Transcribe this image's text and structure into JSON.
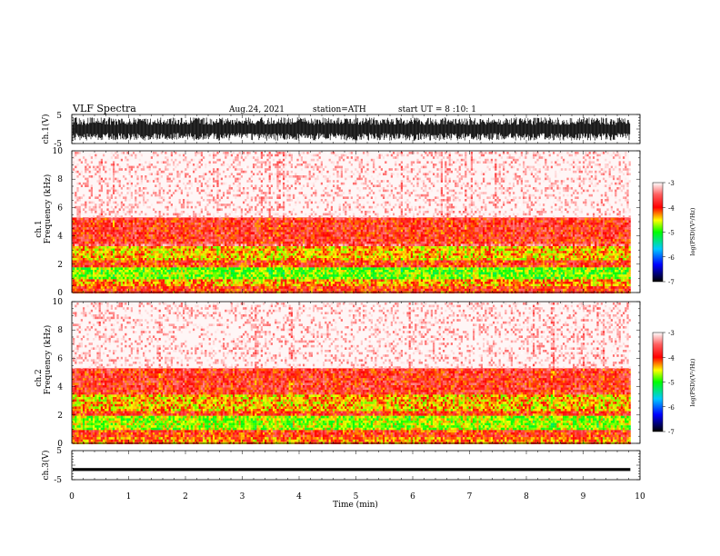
{
  "header": {
    "title": "VLF Spectra",
    "date": "Aug.24, 2021",
    "station": "station=ATH",
    "start": "start UT = 8 :10: 1"
  },
  "colors": {
    "background": "#ffffff",
    "axes": "#000000",
    "colormap": [
      "#000000",
      "#0000ff",
      "#00c8ff",
      "#00ff00",
      "#ffff00",
      "#ff0000",
      "#ffffff"
    ]
  },
  "chart_data": [
    {
      "type": "line",
      "ylabel": "ch.1(V)",
      "yticks": [
        "5",
        "-5"
      ],
      "ylim": [
        -5,
        5
      ],
      "xlim": [
        0,
        10
      ],
      "data_end_min": 9.83,
      "description_signal": "dense noise band",
      "amplitude": [
        -4,
        4
      ]
    },
    {
      "type": "heatmap",
      "ylabel_top": "ch.1",
      "ylabel": "Frequency (kHz)",
      "yticks": [
        "10",
        "8",
        "6",
        "4",
        "2",
        "0"
      ],
      "ylim": [
        0,
        10
      ],
      "xlim": [
        0,
        10
      ],
      "bands": [
        {
          "from": 0.0,
          "to": 0.5,
          "level": -4.0
        },
        {
          "from": 0.5,
          "to": 1.0,
          "level": -4.3
        },
        {
          "from": 1.0,
          "to": 1.8,
          "level": -4.8
        },
        {
          "from": 1.8,
          "to": 2.3,
          "level": -4.0
        },
        {
          "from": 2.3,
          "to": 3.4,
          "level": -4.4
        },
        {
          "from": 3.4,
          "to": 3.6,
          "level": -3.6
        },
        {
          "from": 3.6,
          "to": 5.3,
          "level": -3.9
        },
        {
          "from": 5.3,
          "to": 10.0,
          "level": -3.3
        }
      ]
    },
    {
      "type": "heatmap",
      "ylabel_top": "ch.2",
      "ylabel": "Frequency (kHz)",
      "yticks": [
        "10",
        "8",
        "6",
        "4",
        "2",
        "0"
      ],
      "ylim": [
        0,
        10
      ],
      "xlim": [
        0,
        10
      ],
      "bands": [
        {
          "from": 0.0,
          "to": 0.5,
          "level": -4.2
        },
        {
          "from": 0.5,
          "to": 1.0,
          "level": -4.0
        },
        {
          "from": 1.0,
          "to": 2.0,
          "level": -4.7
        },
        {
          "from": 2.0,
          "to": 2.4,
          "level": -4.0
        },
        {
          "from": 2.4,
          "to": 3.6,
          "level": -4.4
        },
        {
          "from": 3.6,
          "to": 5.3,
          "level": -3.9
        },
        {
          "from": 5.3,
          "to": 10.0,
          "level": -3.3
        }
      ]
    },
    {
      "type": "line",
      "ylabel": "ch.3(V)",
      "yticks": [
        "5",
        "-5"
      ],
      "ylim": [
        -5,
        5
      ],
      "xlim": [
        0,
        10
      ],
      "data_end_min": 9.83,
      "level": -1.5
    }
  ],
  "colorbars": [
    {
      "label": "log(PSD)(V²/Hz)",
      "ticks": [
        "-3",
        "-4",
        "-5",
        "-6",
        "-7"
      ],
      "range": [
        -7,
        -3
      ]
    },
    {
      "label": "log(PSD)(V²/Hz)",
      "ticks": [
        "-3",
        "-4",
        "-5",
        "-6",
        "-7"
      ],
      "range": [
        -7,
        -3
      ]
    }
  ],
  "xaxis": {
    "label": "Time (min)",
    "ticks": [
      "0",
      "1",
      "2",
      "3",
      "4",
      "5",
      "6",
      "7",
      "8",
      "9",
      "10"
    ]
  }
}
